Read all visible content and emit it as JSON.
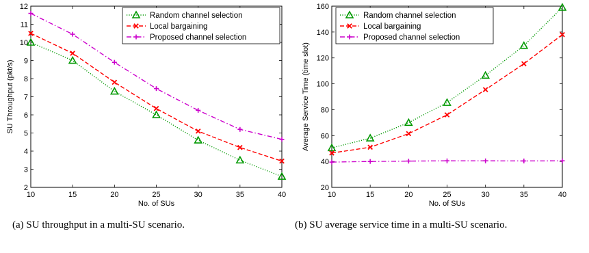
{
  "chart_data": [
    {
      "type": "line",
      "caption": "(a) SU throughput in a multi-SU scenario.",
      "xlabel": "No. of SUs",
      "ylabel": "SU Throughput (pkt/s)",
      "x": [
        10,
        15,
        20,
        25,
        30,
        35,
        40
      ],
      "xticks": [
        10,
        15,
        20,
        25,
        30,
        35,
        40
      ],
      "yticks": [
        2,
        3,
        4,
        5,
        6,
        7,
        8,
        9,
        10,
        11,
        12
      ],
      "xlim": [
        10,
        40
      ],
      "ylim": [
        2,
        12
      ],
      "legend_position": "top-right",
      "series": [
        {
          "name": "Random channel selection",
          "values": [
            10.0,
            9.0,
            7.3,
            6.0,
            4.6,
            3.5,
            2.6
          ],
          "color": "#009900",
          "style": "dotted",
          "marker": "triangle"
        },
        {
          "name": "Local bargaining",
          "values": [
            10.5,
            9.4,
            7.8,
            6.35,
            5.1,
            4.2,
            3.45
          ],
          "color": "#ff0000",
          "style": "dashed",
          "marker": "x"
        },
        {
          "name": "Proposed channel selection",
          "values": [
            11.6,
            10.45,
            8.9,
            7.45,
            6.25,
            5.2,
            4.65
          ],
          "color": "#cc00cc",
          "style": "dashdot",
          "marker": "plus"
        }
      ]
    },
    {
      "type": "line",
      "caption": "(b) SU average service time in a multi-SU scenario.",
      "xlabel": "No. of SUs",
      "ylabel": "Average Service Time (time slot)",
      "x": [
        10,
        15,
        20,
        25,
        30,
        35,
        40
      ],
      "xticks": [
        10,
        15,
        20,
        25,
        30,
        35,
        40
      ],
      "yticks": [
        20,
        40,
        60,
        80,
        100,
        120,
        140,
        160
      ],
      "xlim": [
        10,
        40
      ],
      "ylim": [
        20,
        160
      ],
      "legend_position": "top-left",
      "series": [
        {
          "name": "Random channel selection",
          "values": [
            50.5,
            58,
            70,
            85.5,
            106.5,
            129.5,
            159
          ],
          "color": "#009900",
          "style": "dotted",
          "marker": "triangle"
        },
        {
          "name": "Local bargaining",
          "values": [
            46.5,
            51,
            61.5,
            76,
            95.5,
            115.5,
            138
          ],
          "color": "#ff0000",
          "style": "dashed",
          "marker": "x"
        },
        {
          "name": "Proposed channel selection",
          "values": [
            39.5,
            40,
            40.3,
            40.5,
            40.5,
            40.4,
            40.5
          ],
          "color": "#cc00cc",
          "style": "dashdot",
          "marker": "plus"
        }
      ]
    }
  ]
}
